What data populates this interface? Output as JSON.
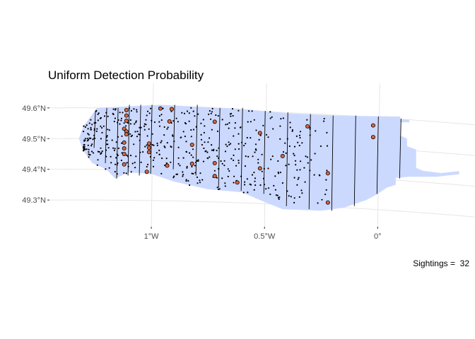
{
  "chart_data": {
    "type": "map",
    "title": "Uniform Detection Probability",
    "caption": "Sightings =  32",
    "x_axis": {
      "ticks": [
        {
          "value": -1.0,
          "label": "1°W"
        },
        {
          "value": -0.5,
          "label": "0.5°W"
        },
        {
          "value": 0.0,
          "label": "0°"
        }
      ]
    },
    "y_axis": {
      "ticks": [
        {
          "value": 49.6,
          "label": "49.6°N"
        },
        {
          "value": 49.5,
          "label": "49.5°N"
        },
        {
          "value": 49.4,
          "label": "49.4°N"
        },
        {
          "value": 49.3,
          "label": "49.3°N"
        }
      ]
    },
    "xlim": [
      -1.45,
      0.43
    ],
    "ylim": [
      49.22,
      49.68
    ],
    "region_fill": "#ccd9ff",
    "sighting_fill": "#d9663f",
    "grid": true,
    "region": [
      [
        -1.24,
        49.6
      ],
      [
        -0.96,
        49.61
      ],
      [
        -0.62,
        49.598
      ],
      [
        -0.4,
        49.583
      ],
      [
        -0.18,
        49.575
      ],
      [
        0.1,
        49.572
      ],
      [
        0.1,
        49.562
      ],
      [
        0.14,
        49.562
      ],
      [
        0.14,
        49.553
      ],
      [
        0.1,
        49.553
      ],
      [
        0.1,
        49.51
      ],
      [
        0.13,
        49.5
      ],
      [
        0.13,
        49.475
      ],
      [
        0.17,
        49.465
      ],
      [
        0.17,
        49.405
      ],
      [
        0.2,
        49.395
      ],
      [
        0.28,
        49.388
      ],
      [
        0.36,
        49.394
      ],
      [
        0.36,
        49.384
      ],
      [
        0.26,
        49.376
      ],
      [
        0.14,
        49.376
      ],
      [
        0.08,
        49.372
      ],
      [
        0.08,
        49.35
      ],
      [
        0.04,
        49.34
      ],
      [
        0.0,
        49.32
      ],
      [
        -0.05,
        49.3
      ],
      [
        -0.15,
        49.275
      ],
      [
        -0.25,
        49.265
      ],
      [
        -0.42,
        49.27
      ],
      [
        -0.52,
        49.3
      ],
      [
        -0.6,
        49.325
      ],
      [
        -0.75,
        49.335
      ],
      [
        -0.9,
        49.36
      ],
      [
        -1.0,
        49.385
      ],
      [
        -1.1,
        49.39
      ],
      [
        -1.16,
        49.37
      ],
      [
        -1.2,
        49.4
      ],
      [
        -1.26,
        49.42
      ],
      [
        -1.3,
        49.46
      ],
      [
        -1.32,
        49.5
      ],
      [
        -1.3,
        49.54
      ],
      [
        -1.26,
        49.58
      ]
    ],
    "transects": [
      {
        "x": -1.25,
        "y0": 49.47,
        "y1": 49.59
      },
      {
        "x": -1.2,
        "y0": 49.42,
        "y1": 49.6
      },
      {
        "x": -1.15,
        "y0": 49.37,
        "y1": 49.6
      },
      {
        "x": -1.1,
        "y0": 49.38,
        "y1": 49.61
      },
      {
        "x": -1.05,
        "y0": 49.38,
        "y1": 49.61
      },
      {
        "x": -1.0,
        "y0": 49.385,
        "y1": 49.61
      },
      {
        "x": -0.9,
        "y0": 49.4,
        "y1": 49.61
      },
      {
        "x": -0.8,
        "y0": 49.38,
        "y1": 49.61
      },
      {
        "x": -0.7,
        "y0": 49.34,
        "y1": 49.6
      },
      {
        "x": -0.6,
        "y0": 49.33,
        "y1": 49.6
      },
      {
        "x": -0.5,
        "y0": 49.32,
        "y1": 49.59
      },
      {
        "x": -0.4,
        "y0": 49.28,
        "y1": 49.585
      },
      {
        "x": -0.3,
        "y0": 49.27,
        "y1": 49.58
      },
      {
        "x": -0.2,
        "y0": 49.265,
        "y1": 49.575
      },
      {
        "x": -0.1,
        "y0": 49.28,
        "y1": 49.575
      },
      {
        "x": 0.0,
        "y0": 49.32,
        "y1": 49.572
      },
      {
        "x": 0.1,
        "y0": 49.37,
        "y1": 49.565
      }
    ],
    "sightings": [
      [
        -1.11,
        49.593
      ],
      [
        -1.11,
        49.575
      ],
      [
        -1.11,
        49.558
      ],
      [
        -1.12,
        49.532
      ],
      [
        -1.11,
        49.523
      ],
      [
        -1.11,
        49.514
      ],
      [
        -1.12,
        49.487
      ],
      [
        -1.12,
        49.468
      ],
      [
        -1.12,
        49.45
      ],
      [
        -1.12,
        49.416
      ],
      [
        -1.01,
        49.484
      ],
      [
        -1.01,
        49.47
      ],
      [
        -1.01,
        49.456
      ],
      [
        -1.02,
        49.392
      ],
      [
        -0.91,
        49.596
      ],
      [
        -0.92,
        49.556
      ],
      [
        -0.93,
        49.412
      ],
      [
        -0.82,
        49.48
      ],
      [
        -0.82,
        49.418
      ],
      [
        -0.72,
        49.555
      ],
      [
        -0.72,
        49.42
      ],
      [
        -0.72,
        49.378
      ],
      [
        -0.62,
        49.357
      ],
      [
        -0.52,
        49.518
      ],
      [
        -0.52,
        49.403
      ],
      [
        -0.42,
        49.443
      ],
      [
        -0.31,
        49.54
      ],
      [
        -0.22,
        49.387
      ],
      [
        -0.22,
        49.292
      ],
      [
        -0.02,
        49.543
      ],
      [
        -0.02,
        49.505
      ],
      [
        -0.96,
        49.598
      ]
    ]
  }
}
